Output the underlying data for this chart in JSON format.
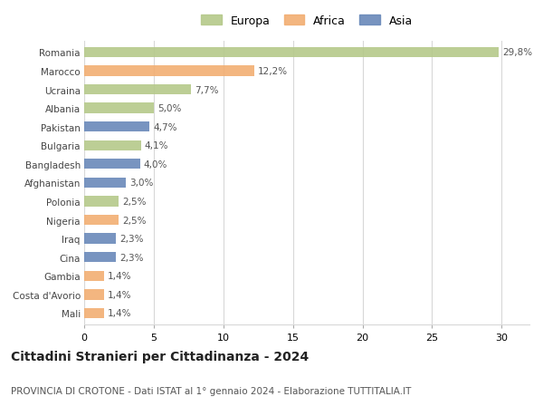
{
  "categories": [
    "Romania",
    "Marocco",
    "Ucraina",
    "Albania",
    "Pakistan",
    "Bulgaria",
    "Bangladesh",
    "Afghanistan",
    "Polonia",
    "Nigeria",
    "Iraq",
    "Cina",
    "Gambia",
    "Costa d'Avorio",
    "Mali"
  ],
  "values": [
    29.8,
    12.2,
    7.7,
    5.0,
    4.7,
    4.1,
    4.0,
    3.0,
    2.5,
    2.5,
    2.3,
    2.3,
    1.4,
    1.4,
    1.4
  ],
  "labels": [
    "29,8%",
    "12,2%",
    "7,7%",
    "5,0%",
    "4,7%",
    "4,1%",
    "4,0%",
    "3,0%",
    "2,5%",
    "2,5%",
    "2,3%",
    "2,3%",
    "1,4%",
    "1,4%",
    "1,4%"
  ],
  "continents": [
    "Europa",
    "Africa",
    "Europa",
    "Europa",
    "Asia",
    "Europa",
    "Asia",
    "Asia",
    "Europa",
    "Africa",
    "Asia",
    "Asia",
    "Africa",
    "Africa",
    "Africa"
  ],
  "colors": {
    "Europa": "#b5c98a",
    "Africa": "#f2ae72",
    "Asia": "#6989ba"
  },
  "title": "Cittadini Stranieri per Cittadinanza - 2024",
  "subtitle": "PROVINCIA DI CROTONE - Dati ISTAT al 1° gennaio 2024 - Elaborazione TUTTITALIA.IT",
  "xlim": [
    0,
    32
  ],
  "xticks": [
    0,
    5,
    10,
    15,
    20,
    25,
    30
  ],
  "background_color": "#ffffff",
  "grid_color": "#d8d8d8",
  "bar_height": 0.55,
  "label_fontsize": 7.5,
  "title_fontsize": 10,
  "subtitle_fontsize": 7.5,
  "ytick_fontsize": 7.5,
  "xtick_fontsize": 8
}
